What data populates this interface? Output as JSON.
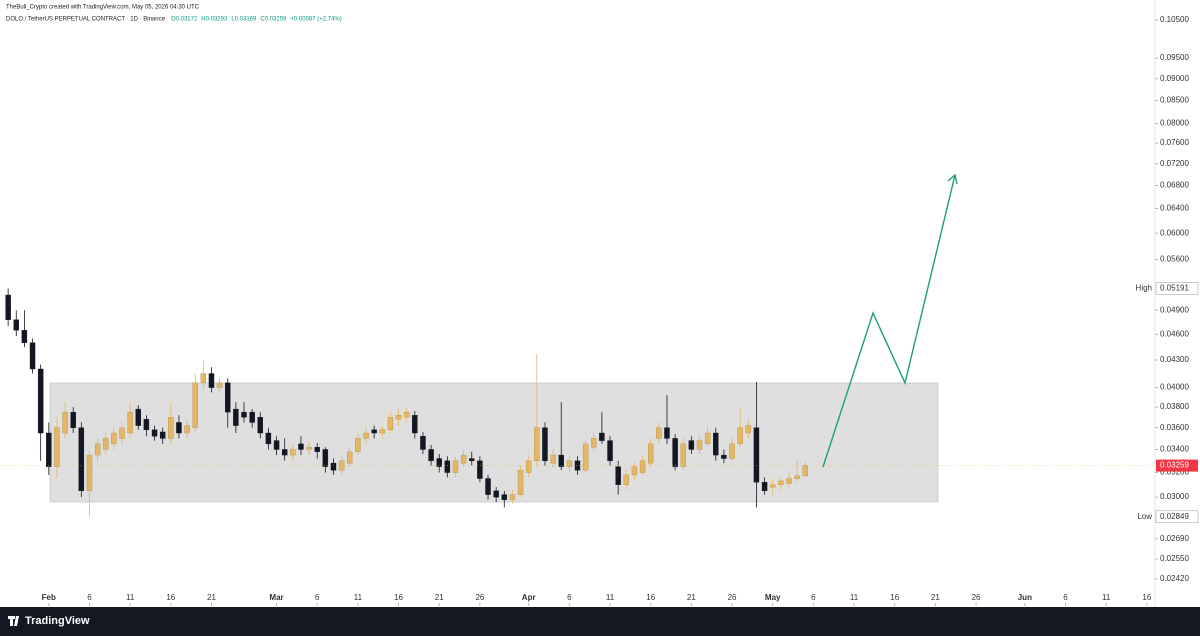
{
  "chart_data": {
    "type": "candlestick",
    "source": "TheBull_Crypto created with TradingView.com, May 05, 2026 04:30 UTC",
    "symbol": "DOLO / TetherUS PERPETUAL CONTRACT · 1D · Binance",
    "ohlc": [
      "O0.03172",
      "H0.03293",
      "L0.03169",
      "C0.03259",
      "+0.00087 (+2.74%)"
    ],
    "brand": "TradingView",
    "log_scale": true,
    "up_color": "#e3b765",
    "down_color": "#131722",
    "x": [
      "01-27",
      "01-28",
      "01-29",
      "01-30",
      "01-31",
      "02-01",
      "02-02",
      "02-03",
      "02-04",
      "02-05",
      "02-06",
      "02-07",
      "02-08",
      "02-09",
      "02-10",
      "02-11",
      "02-12",
      "02-13",
      "02-14",
      "02-15",
      "02-16",
      "02-17",
      "02-18",
      "02-19",
      "02-20",
      "02-21",
      "02-22",
      "02-23",
      "02-24",
      "02-25",
      "02-26",
      "02-27",
      "02-28",
      "03-01",
      "03-02",
      "03-03",
      "03-04",
      "03-05",
      "03-06",
      "03-07",
      "03-08",
      "03-09",
      "03-10",
      "03-11",
      "03-12",
      "03-13",
      "03-14",
      "03-15",
      "03-16",
      "03-17",
      "03-18",
      "03-19",
      "03-20",
      "03-21",
      "03-22",
      "03-23",
      "03-24",
      "03-25",
      "03-26",
      "03-27",
      "03-28",
      "03-29",
      "03-30",
      "03-31",
      "04-01",
      "04-02",
      "04-03",
      "04-04",
      "04-05",
      "04-06",
      "04-07",
      "04-08",
      "04-09",
      "04-10",
      "04-11",
      "04-12",
      "04-13",
      "04-14",
      "04-15",
      "04-16",
      "04-17",
      "04-18",
      "04-19",
      "04-20",
      "04-21",
      "04-22",
      "04-23",
      "04-24",
      "04-25",
      "04-26",
      "04-27",
      "04-28",
      "04-29",
      "04-30",
      "05-01",
      "05-02",
      "05-03",
      "05-04",
      "05-05"
    ],
    "open": [
      0.051,
      0.0478,
      0.0465,
      0.045,
      0.042,
      0.0355,
      0.0325,
      0.0355,
      0.0375,
      0.036,
      0.0305,
      0.0335,
      0.034,
      0.0345,
      0.035,
      0.0355,
      0.0378,
      0.0368,
      0.0358,
      0.0356,
      0.035,
      0.0365,
      0.0355,
      0.036,
      0.0405,
      0.0415,
      0.04,
      0.0405,
      0.0378,
      0.0375,
      0.0375,
      0.037,
      0.0355,
      0.0348,
      0.034,
      0.0335,
      0.0345,
      0.034,
      0.0342,
      0.034,
      0.0328,
      0.0322,
      0.0328,
      0.0338,
      0.035,
      0.0358,
      0.0355,
      0.0358,
      0.0368,
      0.037,
      0.0372,
      0.0352,
      0.034,
      0.0332,
      0.033,
      0.032,
      0.0328,
      0.0332,
      0.033,
      0.0315,
      0.0305,
      0.0302,
      0.0298,
      0.0302,
      0.032,
      0.033,
      0.036,
      0.0328,
      0.0335,
      0.0325,
      0.033,
      0.0322,
      0.0342,
      0.0355,
      0.0348,
      0.0325,
      0.031,
      0.0318,
      0.032,
      0.0328,
      0.035,
      0.036,
      0.035,
      0.0325,
      0.0348,
      0.034,
      0.0345,
      0.0355,
      0.0335,
      0.0332,
      0.0345,
      0.0355,
      0.036,
      0.0312,
      0.0308,
      0.031,
      0.0311,
      0.0315,
      0.03172
    ],
    "high": [
      0.0519,
      0.049,
      0.049,
      0.0455,
      0.0425,
      0.0365,
      0.037,
      0.0385,
      0.038,
      0.0365,
      0.034,
      0.035,
      0.0355,
      0.036,
      0.0365,
      0.0385,
      0.0382,
      0.0372,
      0.0362,
      0.036,
      0.0385,
      0.0372,
      0.0368,
      0.0415,
      0.043,
      0.0422,
      0.041,
      0.041,
      0.0385,
      0.0385,
      0.0378,
      0.0375,
      0.036,
      0.0352,
      0.035,
      0.0345,
      0.0352,
      0.0348,
      0.0346,
      0.0342,
      0.0332,
      0.0334,
      0.0342,
      0.0355,
      0.036,
      0.0362,
      0.0362,
      0.0375,
      0.0378,
      0.038,
      0.0376,
      0.0356,
      0.0344,
      0.0336,
      0.0334,
      0.0334,
      0.034,
      0.0338,
      0.0334,
      0.0318,
      0.0308,
      0.0305,
      0.0306,
      0.0326,
      0.0335,
      0.0437,
      0.0365,
      0.034,
      0.0385,
      0.0334,
      0.0334,
      0.0348,
      0.0355,
      0.0375,
      0.0352,
      0.033,
      0.0322,
      0.0328,
      0.0335,
      0.035,
      0.0365,
      0.0392,
      0.0354,
      0.035,
      0.0352,
      0.0352,
      0.0362,
      0.036,
      0.034,
      0.035,
      0.038,
      0.0368,
      0.0406,
      0.0316,
      0.0314,
      0.0316,
      0.032,
      0.033,
      0.03293
    ],
    "low": [
      0.047,
      0.0458,
      0.0445,
      0.0415,
      0.033,
      0.0318,
      0.0315,
      0.035,
      0.0355,
      0.03,
      0.0285,
      0.033,
      0.0335,
      0.034,
      0.0345,
      0.035,
      0.0358,
      0.0352,
      0.0348,
      0.0345,
      0.0345,
      0.035,
      0.035,
      0.0355,
      0.0398,
      0.0395,
      0.0395,
      0.036,
      0.0355,
      0.0365,
      0.036,
      0.035,
      0.034,
      0.0335,
      0.033,
      0.033,
      0.0335,
      0.0335,
      0.0332,
      0.032,
      0.0318,
      0.0318,
      0.0325,
      0.0335,
      0.0345,
      0.035,
      0.035,
      0.0355,
      0.0362,
      0.0365,
      0.035,
      0.0336,
      0.0326,
      0.032,
      0.0316,
      0.0316,
      0.0325,
      0.0326,
      0.0312,
      0.0298,
      0.0296,
      0.0292,
      0.0295,
      0.03,
      0.0316,
      0.0325,
      0.0326,
      0.0324,
      0.0322,
      0.032,
      0.0318,
      0.032,
      0.0338,
      0.0345,
      0.0326,
      0.0302,
      0.0306,
      0.0314,
      0.0318,
      0.0325,
      0.0346,
      0.0345,
      0.0322,
      0.0322,
      0.0336,
      0.0336,
      0.0342,
      0.033,
      0.0328,
      0.033,
      0.0342,
      0.035,
      0.0292,
      0.0302,
      0.0302,
      0.0306,
      0.0308,
      0.0312,
      0.03169
    ],
    "close": [
      0.0478,
      0.0465,
      0.045,
      0.042,
      0.0355,
      0.0325,
      0.036,
      0.0375,
      0.036,
      0.0305,
      0.0335,
      0.0345,
      0.035,
      0.0355,
      0.036,
      0.0375,
      0.0362,
      0.0358,
      0.0352,
      0.035,
      0.037,
      0.0355,
      0.0362,
      0.0405,
      0.0415,
      0.04,
      0.0405,
      0.0375,
      0.0362,
      0.037,
      0.0365,
      0.0355,
      0.0345,
      0.034,
      0.0335,
      0.034,
      0.034,
      0.0342,
      0.0338,
      0.0325,
      0.0322,
      0.033,
      0.0338,
      0.035,
      0.0355,
      0.0355,
      0.0358,
      0.037,
      0.0372,
      0.0375,
      0.0355,
      0.034,
      0.033,
      0.0325,
      0.032,
      0.033,
      0.0335,
      0.033,
      0.0315,
      0.0302,
      0.03,
      0.0298,
      0.0302,
      0.0322,
      0.033,
      0.036,
      0.033,
      0.0335,
      0.0325,
      0.033,
      0.0322,
      0.0345,
      0.035,
      0.0348,
      0.033,
      0.031,
      0.0318,
      0.0325,
      0.033,
      0.0345,
      0.036,
      0.035,
      0.0325,
      0.0345,
      0.034,
      0.0348,
      0.0355,
      0.0335,
      0.0332,
      0.0345,
      0.036,
      0.0362,
      0.0312,
      0.0305,
      0.031,
      0.0313,
      0.0315,
      0.03172,
      0.03259
    ],
    "xlim": [
      "01-26",
      "06-17"
    ],
    "xticks": [
      {
        "value": "02-01",
        "label": "Feb"
      },
      {
        "value": "02-06",
        "label": "6"
      },
      {
        "value": "02-11",
        "label": "11"
      },
      {
        "value": "02-16",
        "label": "16"
      },
      {
        "value": "02-21",
        "label": "21"
      },
      {
        "value": "03-01",
        "label": "Mar"
      },
      {
        "value": "03-06",
        "label": "6"
      },
      {
        "value": "03-11",
        "label": "11"
      },
      {
        "value": "03-16",
        "label": "16"
      },
      {
        "value": "03-21",
        "label": "21"
      },
      {
        "value": "03-26",
        "label": "26"
      },
      {
        "value": "04-01",
        "label": "Apr"
      },
      {
        "value": "04-06",
        "label": "6"
      },
      {
        "value": "04-11",
        "label": "11"
      },
      {
        "value": "04-16",
        "label": "16"
      },
      {
        "value": "04-21",
        "label": "21"
      },
      {
        "value": "04-26",
        "label": "26"
      },
      {
        "value": "05-01",
        "label": "May"
      },
      {
        "value": "05-06",
        "label": "6"
      },
      {
        "value": "05-11",
        "label": "11"
      },
      {
        "value": "05-16",
        "label": "16"
      },
      {
        "value": "05-21",
        "label": "21"
      },
      {
        "value": "05-26",
        "label": "26"
      },
      {
        "value": "06-01",
        "label": "Jun"
      },
      {
        "value": "06-06",
        "label": "6"
      },
      {
        "value": "06-11",
        "label": "11"
      },
      {
        "value": "06-16",
        "label": "16"
      }
    ],
    "ylim": [
      0.0226,
      0.1078
    ],
    "yticks": [
      {
        "value": 0.105,
        "label": "0.10500"
      },
      {
        "value": 0.095,
        "label": "0.09500"
      },
      {
        "value": 0.09,
        "label": "0.09000"
      },
      {
        "value": 0.085,
        "label": "0.08500"
      },
      {
        "value": 0.08,
        "label": "0.08000"
      },
      {
        "value": 0.076,
        "label": "0.07600"
      },
      {
        "value": 0.072,
        "label": "0.07200"
      },
      {
        "value": 0.068,
        "label": "0.06800"
      },
      {
        "value": 0.064,
        "label": "0.06400"
      },
      {
        "value": 0.06,
        "label": "0.06000"
      },
      {
        "value": 0.056,
        "label": "0.05600"
      },
      {
        "value": 0.049,
        "label": "0.04900"
      },
      {
        "value": 0.046,
        "label": "0.04600"
      },
      {
        "value": 0.043,
        "label": "0.04300"
      },
      {
        "value": 0.04,
        "label": "0.04000"
      },
      {
        "value": 0.038,
        "label": "0.03800"
      },
      {
        "value": 0.036,
        "label": "0.03600"
      },
      {
        "value": 0.034,
        "label": "0.03400"
      },
      {
        "value": 0.032,
        "label": "0.03200"
      },
      {
        "value": 0.03,
        "label": "0.03000"
      },
      {
        "value": 0.0269,
        "label": "0.02690"
      },
      {
        "value": 0.0255,
        "label": "0.02550"
      },
      {
        "value": 0.0242,
        "label": "0.02420"
      }
    ],
    "high_marker": {
      "name": "High",
      "price": {
        "value": 0.05191,
        "label": "0.05191"
      }
    },
    "low_marker": {
      "name": "Low",
      "price": {
        "value": 0.02849,
        "label": "0.02849"
      }
    },
    "last_price": {
      "value": 0.03259,
      "label": "0.03259"
    }
  }
}
